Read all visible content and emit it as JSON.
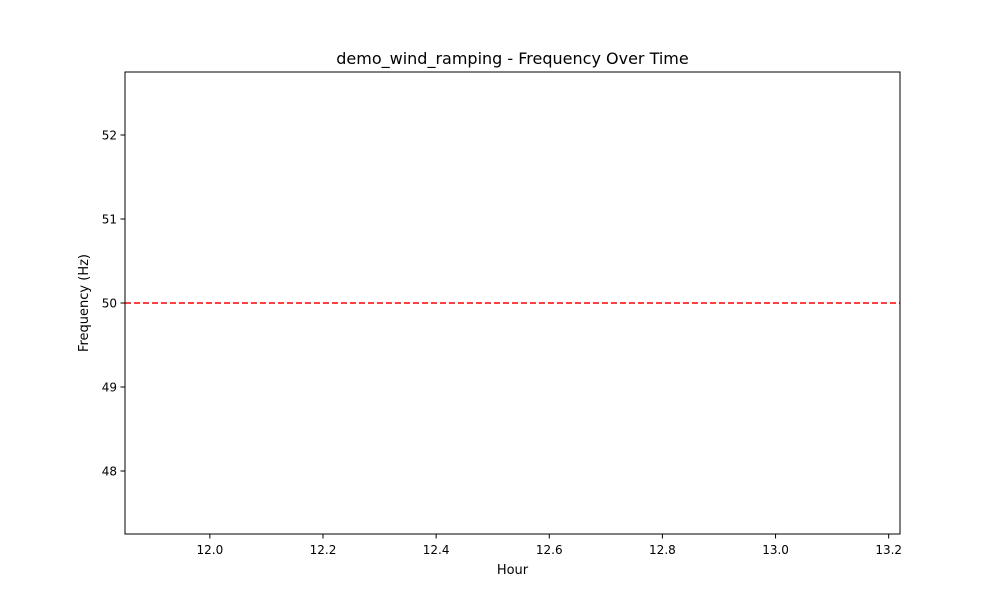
{
  "chart_data": {
    "type": "line",
    "title": "demo_wind_ramping - Frequency Over Time",
    "xlabel": "Hour",
    "ylabel": "Frequency (Hz)",
    "xlim": [
      11.85,
      13.22
    ],
    "ylim": [
      47.25,
      52.75
    ],
    "xticks": [
      12.0,
      12.2,
      12.4,
      12.6,
      12.8,
      13.0,
      13.2
    ],
    "xtick_labels": [
      "12.0",
      "12.2",
      "12.4",
      "12.6",
      "12.8",
      "13.0",
      "13.2"
    ],
    "yticks": [
      48,
      49,
      50,
      51,
      52
    ],
    "ytick_labels": [
      "48",
      "49",
      "50",
      "51",
      "52"
    ],
    "grid": false,
    "series": [],
    "reference_lines": [
      {
        "orientation": "horizontal",
        "y": 50,
        "color": "#ff0000",
        "style": "dashed"
      }
    ]
  }
}
